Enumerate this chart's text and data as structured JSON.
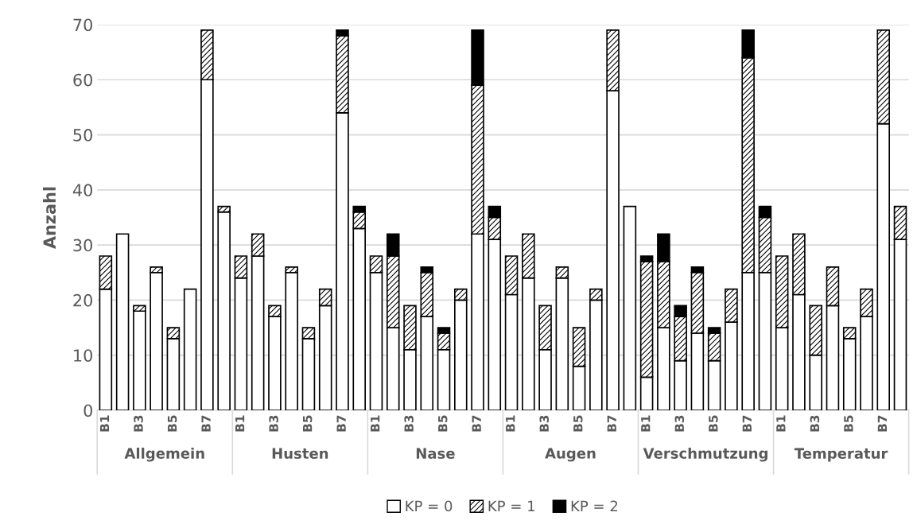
{
  "chart_data": {
    "type": "bar",
    "stacked": true,
    "ylabel": "Anzahl",
    "categories": [
      "B1",
      null,
      "B3",
      null,
      "B5",
      null,
      "B7",
      null,
      "B1",
      null,
      "B3",
      null,
      "B5",
      null,
      "B7",
      null,
      "B1",
      null,
      "B3",
      null,
      "B5",
      null,
      "B7",
      null,
      "B1",
      null,
      "B3",
      null,
      "B5",
      null,
      "B7",
      null,
      "B1",
      null,
      "B3",
      null,
      "B5",
      null,
      "B7",
      null,
      "B1",
      null,
      "B3",
      null,
      "B5",
      null,
      "B7",
      null
    ],
    "annotations": [
      "Allgemein",
      "Husten",
      "Nase",
      "Augen",
      "Verschmutzung",
      "Temperatur"
    ],
    "series": [
      {
        "name": "KP = 0",
        "color": "#ffffff",
        "values": [
          22,
          32,
          18,
          25,
          13,
          22,
          60,
          36,
          24,
          28,
          17,
          25,
          13,
          19,
          54,
          33,
          25,
          15,
          11,
          17,
          11,
          20,
          32,
          31,
          21,
          24,
          11,
          24,
          8,
          20,
          58,
          37,
          6,
          15,
          9,
          14,
          9,
          16,
          25,
          25,
          15,
          21,
          10,
          19,
          13,
          17,
          52,
          31
        ]
      },
      {
        "name": "KP = 1",
        "color": "#000000",
        "values": [
          6,
          0,
          1,
          1,
          2,
          0,
          9,
          1,
          4,
          4,
          2,
          1,
          2,
          3,
          14,
          3,
          3,
          13,
          8,
          8,
          3,
          2,
          27,
          4,
          7,
          8,
          8,
          2,
          7,
          2,
          11,
          0,
          21,
          12,
          8,
          11,
          5,
          6,
          39,
          10,
          13,
          11,
          9,
          7,
          2,
          5,
          17,
          6
        ]
      },
      {
        "name": "KP = 2",
        "color": "#000000",
        "values": [
          0,
          0,
          0,
          0,
          0,
          0,
          0,
          0,
          0,
          0,
          0,
          0,
          0,
          0,
          1,
          1,
          0,
          4,
          0,
          1,
          1,
          0,
          10,
          2,
          0,
          0,
          0,
          0,
          0,
          0,
          0,
          0,
          1,
          5,
          2,
          1,
          1,
          0,
          5,
          2,
          0,
          0,
          0,
          0,
          0,
          0,
          0,
          0
        ]
      }
    ],
    "ylim": [
      0,
      70
    ],
    "yticks": [
      0,
      10,
      20,
      30,
      40,
      50,
      60,
      70
    ],
    "grid": "y",
    "legend": "bottom"
  }
}
